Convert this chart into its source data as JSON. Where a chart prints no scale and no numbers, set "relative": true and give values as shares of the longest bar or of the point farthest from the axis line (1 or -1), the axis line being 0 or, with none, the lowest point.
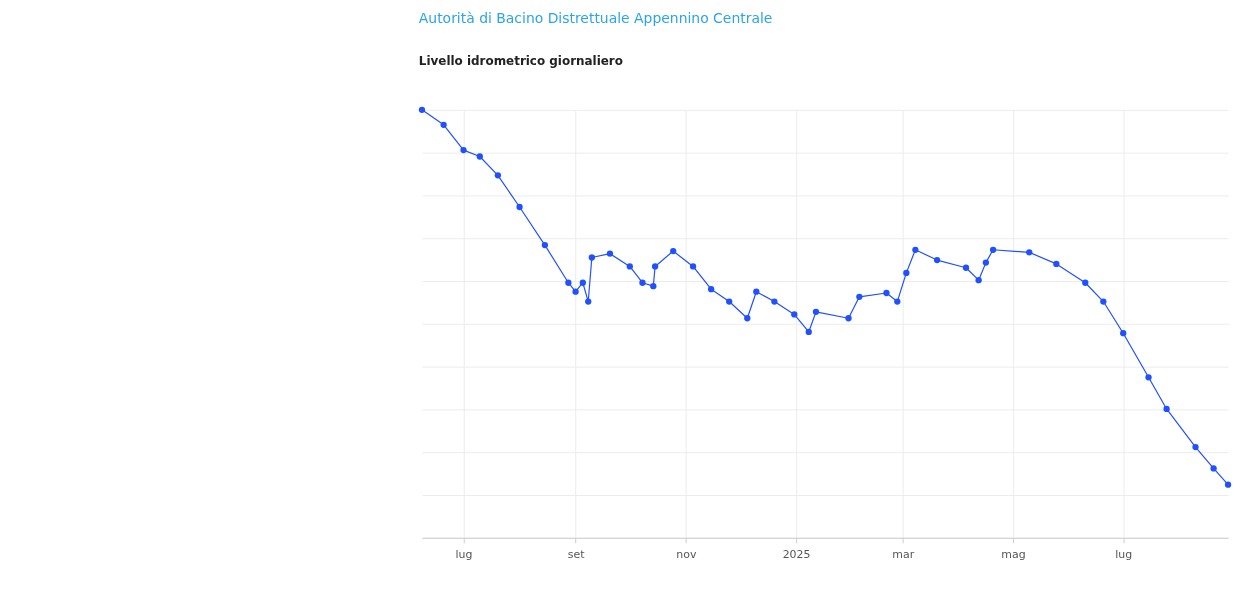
{
  "chart_data": {
    "type": "line",
    "title": "Autorità di Bacino Distrettuale Appennino Centrale",
    "subtitle": "Livello idrometrico giornaliero",
    "relative": true,
    "marker": "circle",
    "line_style": "solid",
    "grid": true,
    "x": [
      "2024-06-08",
      "2024-06-20",
      "2024-07-01",
      "2024-07-10",
      "2024-07-20",
      "2024-08-01",
      "2024-08-15",
      "2024-08-28",
      "2024-09-01",
      "2024-09-05",
      "2024-09-08",
      "2024-09-10",
      "2024-09-20",
      "2024-10-01",
      "2024-10-08",
      "2024-10-14",
      "2024-10-15",
      "2024-10-25",
      "2024-11-05",
      "2024-11-15",
      "2024-11-25",
      "2024-12-05",
      "2024-12-10",
      "2024-12-20",
      "2024-12-31",
      "2025-01-08",
      "2025-01-12",
      "2025-01-30",
      "2025-02-05",
      "2025-02-20",
      "2025-02-26",
      "2025-03-03",
      "2025-03-08",
      "2025-03-20",
      "2025-04-05",
      "2025-04-12",
      "2025-04-16",
      "2025-04-20",
      "2025-05-10",
      "2025-05-25",
      "2025-06-10",
      "2025-06-20",
      "2025-07-01",
      "2025-07-15",
      "2025-07-25",
      "2025-08-10",
      "2025-08-20",
      "2025-08-28"
    ],
    "series": [
      {
        "color": "#2050ff",
        "values": [
          1.0,
          0.965,
          0.906,
          0.891,
          0.847,
          0.773,
          0.684,
          0.596,
          0.575,
          0.596,
          0.552,
          0.655,
          0.664,
          0.634,
          0.596,
          0.588,
          0.634,
          0.67,
          0.634,
          0.581,
          0.552,
          0.513,
          0.575,
          0.552,
          0.522,
          0.481,
          0.528,
          0.513,
          0.563,
          0.572,
          0.552,
          0.619,
          0.673,
          0.649,
          0.631,
          0.602,
          0.643,
          0.673,
          0.667,
          0.64,
          0.596,
          0.552,
          0.478,
          0.375,
          0.301,
          0.212,
          0.162,
          0.124
        ]
      }
    ],
    "xlim": [
      "2024-06-08",
      "2025-08-28"
    ],
    "xticks": [
      {
        "value": "2024-07-01",
        "label": "lug"
      },
      {
        "value": "2024-09-01",
        "label": "set"
      },
      {
        "value": "2024-11-01",
        "label": "nov"
      },
      {
        "value": "2025-01-01",
        "label": "2025"
      },
      {
        "value": "2025-03-01",
        "label": "mar"
      },
      {
        "value": "2025-05-01",
        "label": "mag"
      },
      {
        "value": "2025-07-01",
        "label": "lug"
      }
    ]
  }
}
